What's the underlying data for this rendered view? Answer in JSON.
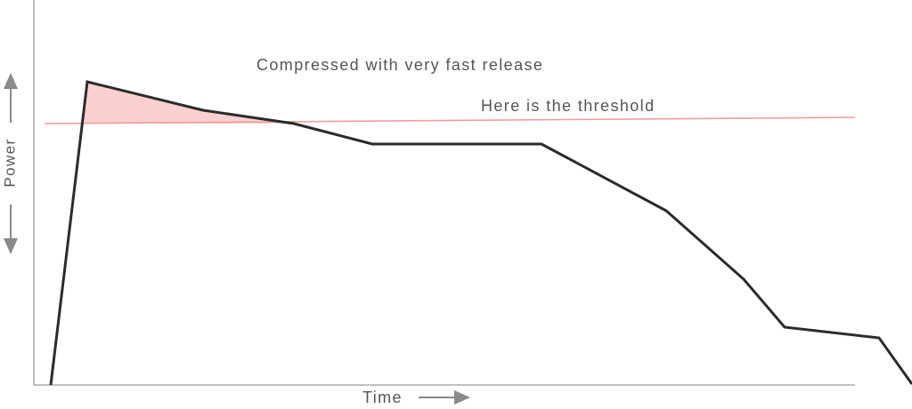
{
  "title": "Compressed with very fast release",
  "threshold_label": "Here is the threshold",
  "x_axis_label": "Time",
  "y_axis_label": "Power",
  "colors": {
    "axis": "#9a9a9a",
    "signal": "#2b2b2b",
    "threshold": "#ee9e9e",
    "fill": "#fdd0d0",
    "label": "#555555",
    "arrow": "#8a8a8a"
  }
}
